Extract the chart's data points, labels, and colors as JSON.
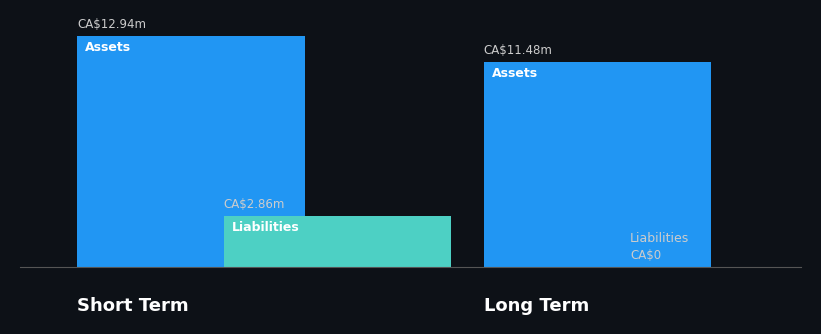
{
  "background_color": "#0d1117",
  "sections": [
    {
      "label": "Short Term",
      "bars": [
        {
          "name": "Assets",
          "value": 12.94,
          "value_label": "CA$12.94m",
          "color": "#2196f3",
          "text_color": "#ffffff"
        },
        {
          "name": "Liabilities",
          "value": 2.86,
          "value_label": "CA$2.86m",
          "color": "#4dd0c4",
          "text_color": "#ffffff"
        }
      ]
    },
    {
      "label": "Long Term",
      "bars": [
        {
          "name": "Assets",
          "value": 11.48,
          "value_label": "CA$11.48m",
          "color": "#2196f3",
          "text_color": "#ffffff"
        },
        {
          "name": "Liabilities",
          "value": 0.0,
          "value_label": "CA$0",
          "color": "#2196f3",
          "text_color": "#ffffff"
        }
      ]
    }
  ],
  "label_fontsize": 9,
  "value_fontsize": 8.5,
  "section_label_fontsize": 13,
  "bar_width": 0.28,
  "max_value": 14.0,
  "section_label_color": "#ffffff",
  "value_label_color": "#cccccc",
  "axis_line_color": "#555555"
}
